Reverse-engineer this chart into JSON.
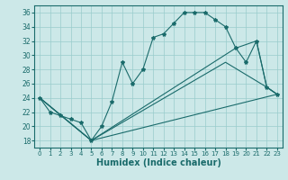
{
  "title": "",
  "xlabel": "Humidex (Indice chaleur)",
  "ylabel": "",
  "xlim": [
    -0.5,
    23.5
  ],
  "ylim": [
    17,
    37
  ],
  "yticks": [
    18,
    20,
    22,
    24,
    26,
    28,
    30,
    32,
    34,
    36
  ],
  "xticks": [
    0,
    1,
    2,
    3,
    4,
    5,
    6,
    7,
    8,
    9,
    10,
    11,
    12,
    13,
    14,
    15,
    16,
    17,
    18,
    19,
    20,
    21,
    22,
    23
  ],
  "bg_color": "#cce8e8",
  "grid_color": "#99cccc",
  "line_color": "#1a6b6b",
  "line1_x": [
    0,
    1,
    2,
    3,
    4,
    5,
    6,
    7,
    8,
    9,
    10,
    11,
    12,
    13,
    14,
    15,
    16,
    17,
    18,
    19,
    20,
    21,
    22,
    23
  ],
  "line1_y": [
    24,
    22,
    21.5,
    21,
    20.5,
    18,
    20,
    23.5,
    29,
    26,
    28,
    32.5,
    33,
    34.5,
    36,
    36,
    36,
    35,
    34,
    31,
    29,
    32,
    25.5,
    24.5
  ],
  "line2_x": [
    0,
    5,
    19,
    21,
    22,
    23
  ],
  "line2_y": [
    24,
    18,
    31,
    32,
    25.5,
    24.5
  ],
  "line3_x": [
    0,
    5,
    18,
    22,
    23
  ],
  "line3_y": [
    24,
    18,
    29,
    25.5,
    24.5
  ],
  "line4_x": [
    0,
    5,
    23
  ],
  "line4_y": [
    24,
    18,
    24.5
  ],
  "marker": "*",
  "markersize": 3,
  "linewidth": 0.8,
  "xlabel_fontsize": 7
}
